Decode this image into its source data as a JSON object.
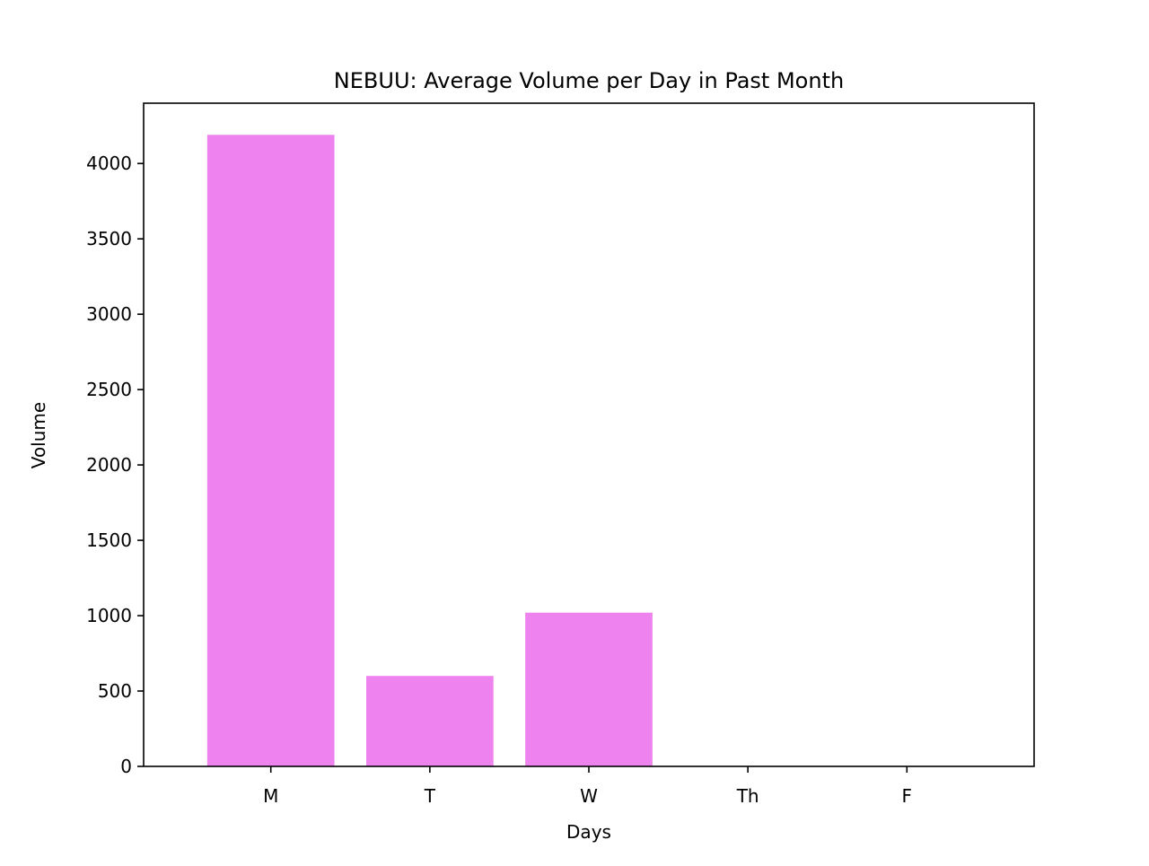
{
  "chart_data": {
    "type": "bar",
    "title": "NEBUU: Average Volume per Day in Past Month",
    "xlabel": "Days",
    "ylabel": "Volume",
    "categories": [
      "M",
      "T",
      "W",
      "Th",
      "F"
    ],
    "values": [
      4190,
      600,
      1020,
      0,
      0
    ],
    "ylim": [
      0,
      4400
    ],
    "yticks": [
      0,
      500,
      1000,
      1500,
      2000,
      2500,
      3000,
      3500,
      4000
    ],
    "bar_color": "#ee82ee",
    "grid": false,
    "legend": "none"
  }
}
